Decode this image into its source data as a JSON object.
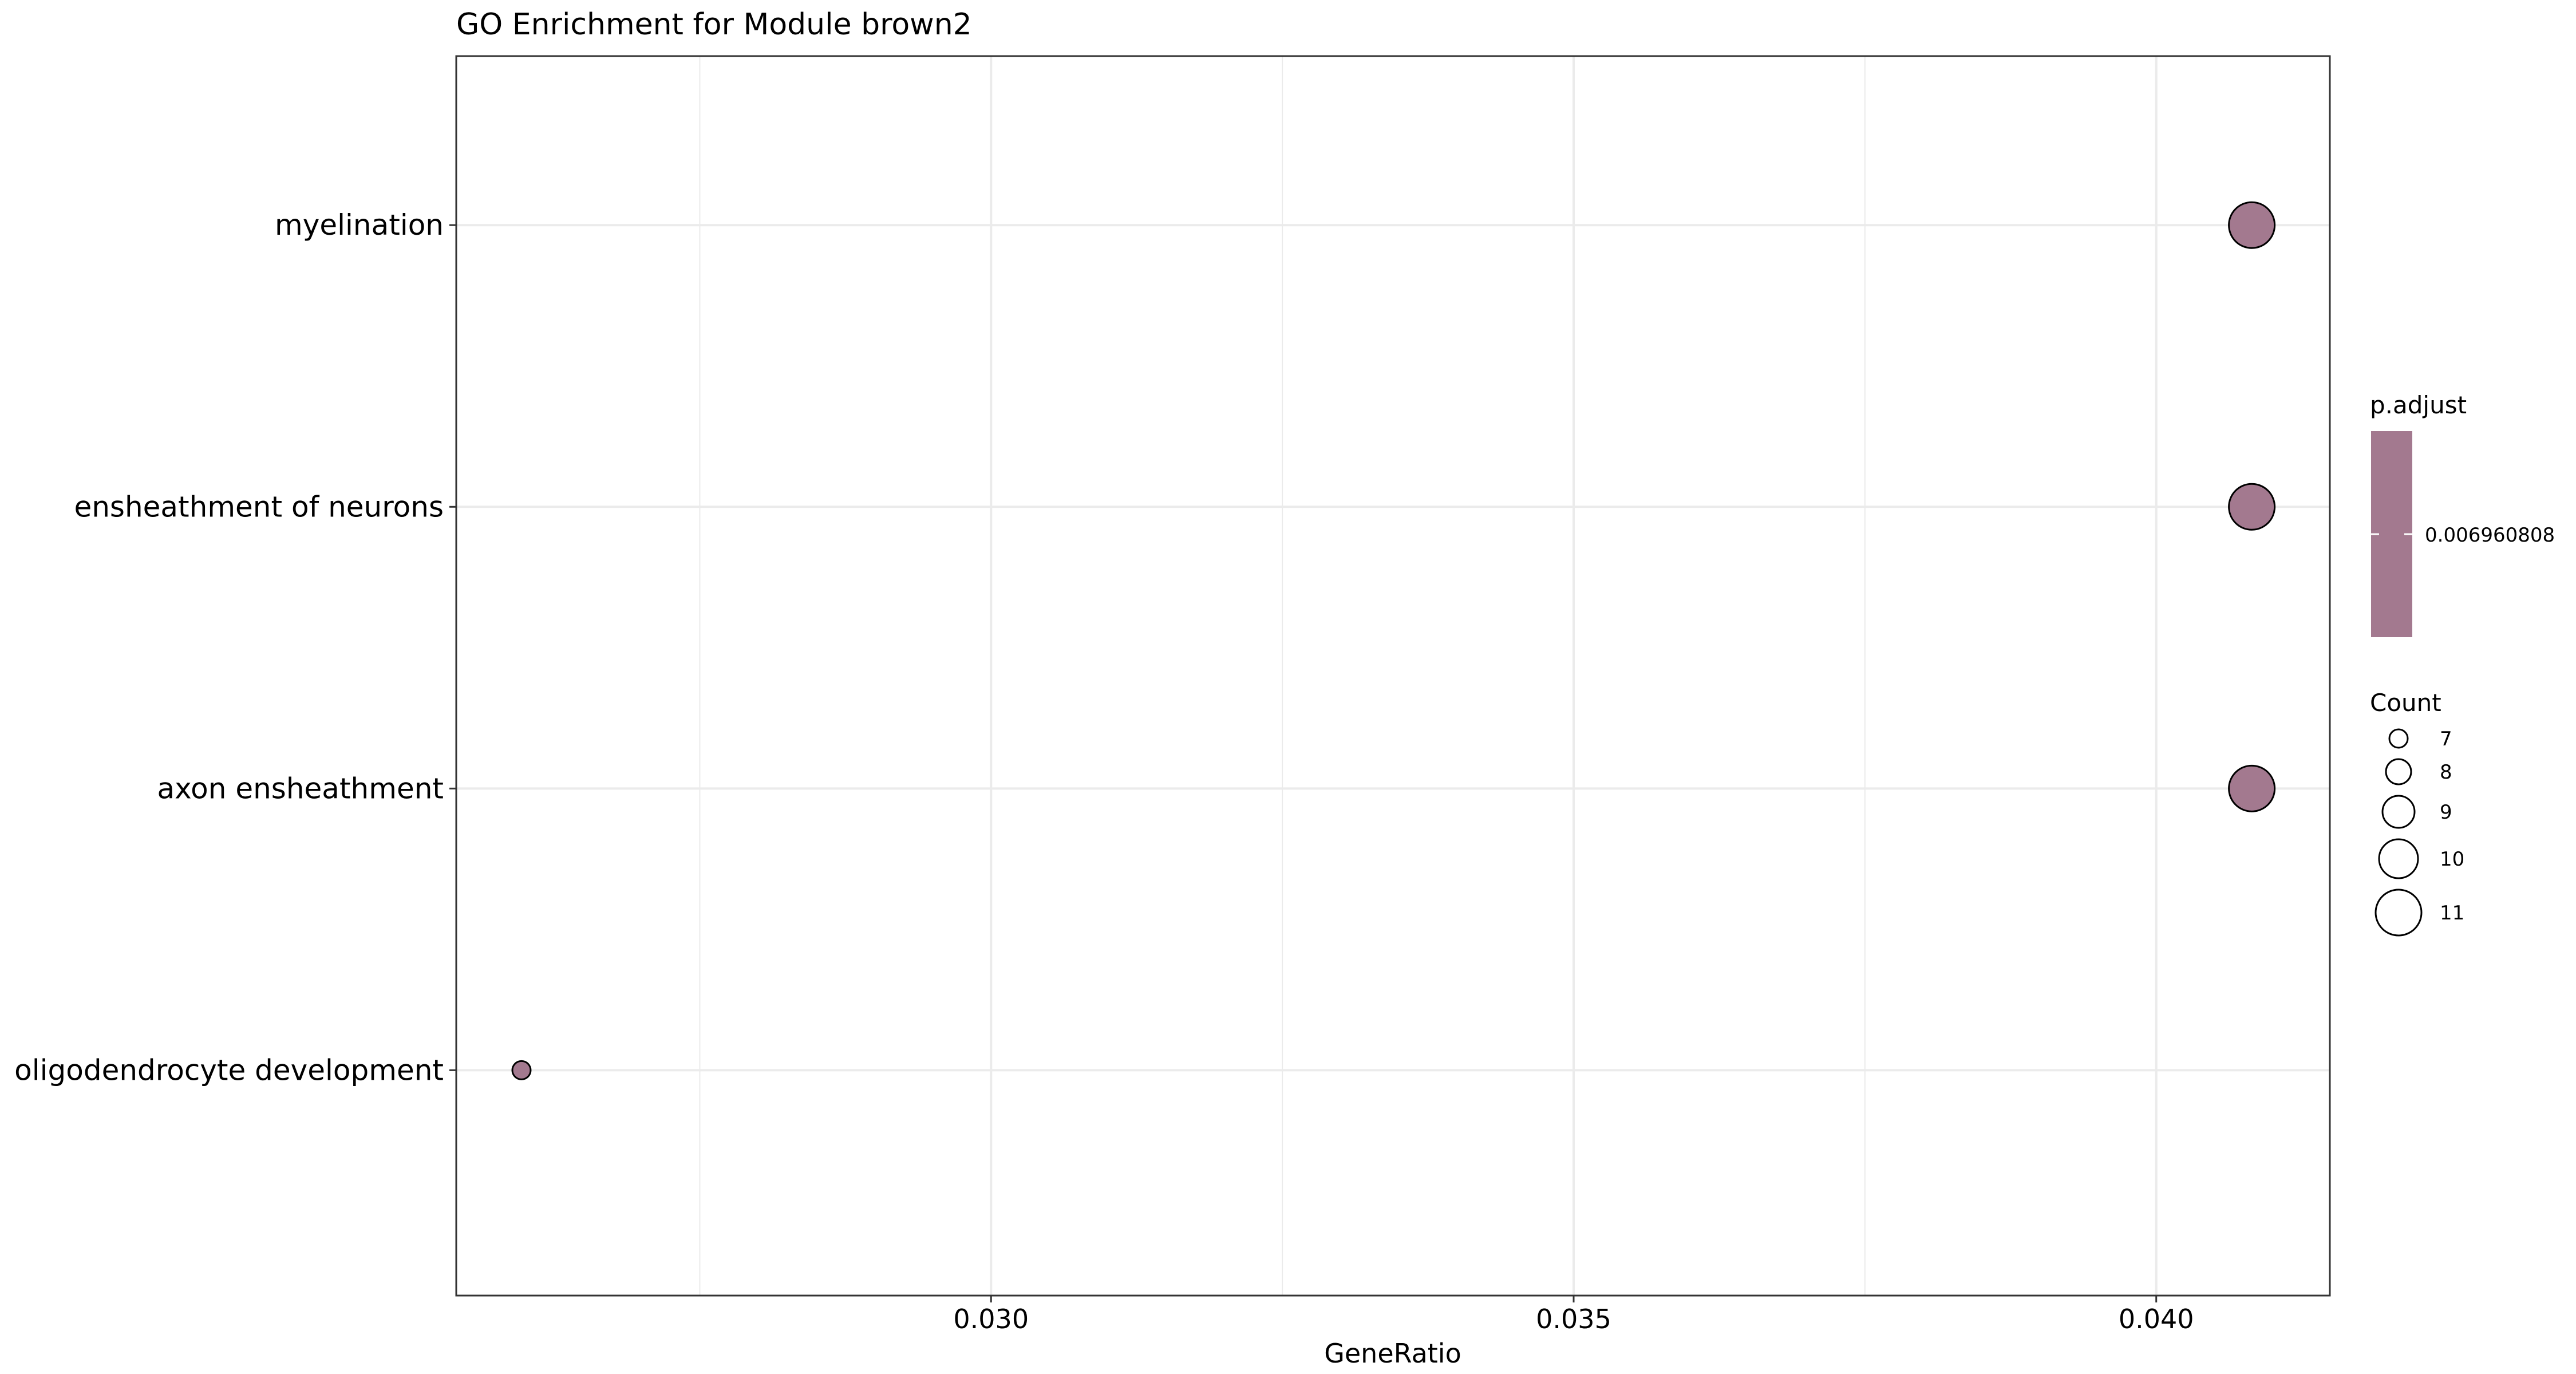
{
  "chart_data": {
    "type": "scatter",
    "title": "GO Enrichment for Module brown2",
    "xlabel": "GeneRatio",
    "ylabel": "",
    "xlim": [
      0.02541,
      0.04149
    ],
    "x_ticks": [
      0.03,
      0.035,
      0.04
    ],
    "x_tick_labels": [
      "0.030",
      "0.035",
      "0.040"
    ],
    "grid": true,
    "categories": [
      "myelination",
      "ensheathment of neurons",
      "axon ensheathment",
      "oligodendrocyte development"
    ],
    "points": [
      {
        "term": "myelination",
        "x": 0.04082,
        "count": 11,
        "p_adjust": 0.006960808
      },
      {
        "term": "ensheathment of neurons",
        "x": 0.04082,
        "count": 11,
        "p_adjust": 0.006960808
      },
      {
        "term": "axon ensheathment",
        "x": 0.04082,
        "count": 11,
        "p_adjust": 0.006960808
      },
      {
        "term": "oligodendrocyte development",
        "x": 0.02597,
        "count": 7,
        "p_adjust": 0.006960808
      }
    ],
    "point_color": "#a3798f",
    "legend_placement": "right",
    "color_legend": {
      "title": "p.adjust",
      "label": "0.006960808",
      "color": "#a3798f"
    },
    "size_legend": {
      "title": "Count",
      "values": [
        7,
        8,
        9,
        10,
        11
      ],
      "labels": [
        "7",
        "8",
        "9",
        "10",
        "11"
      ]
    }
  }
}
